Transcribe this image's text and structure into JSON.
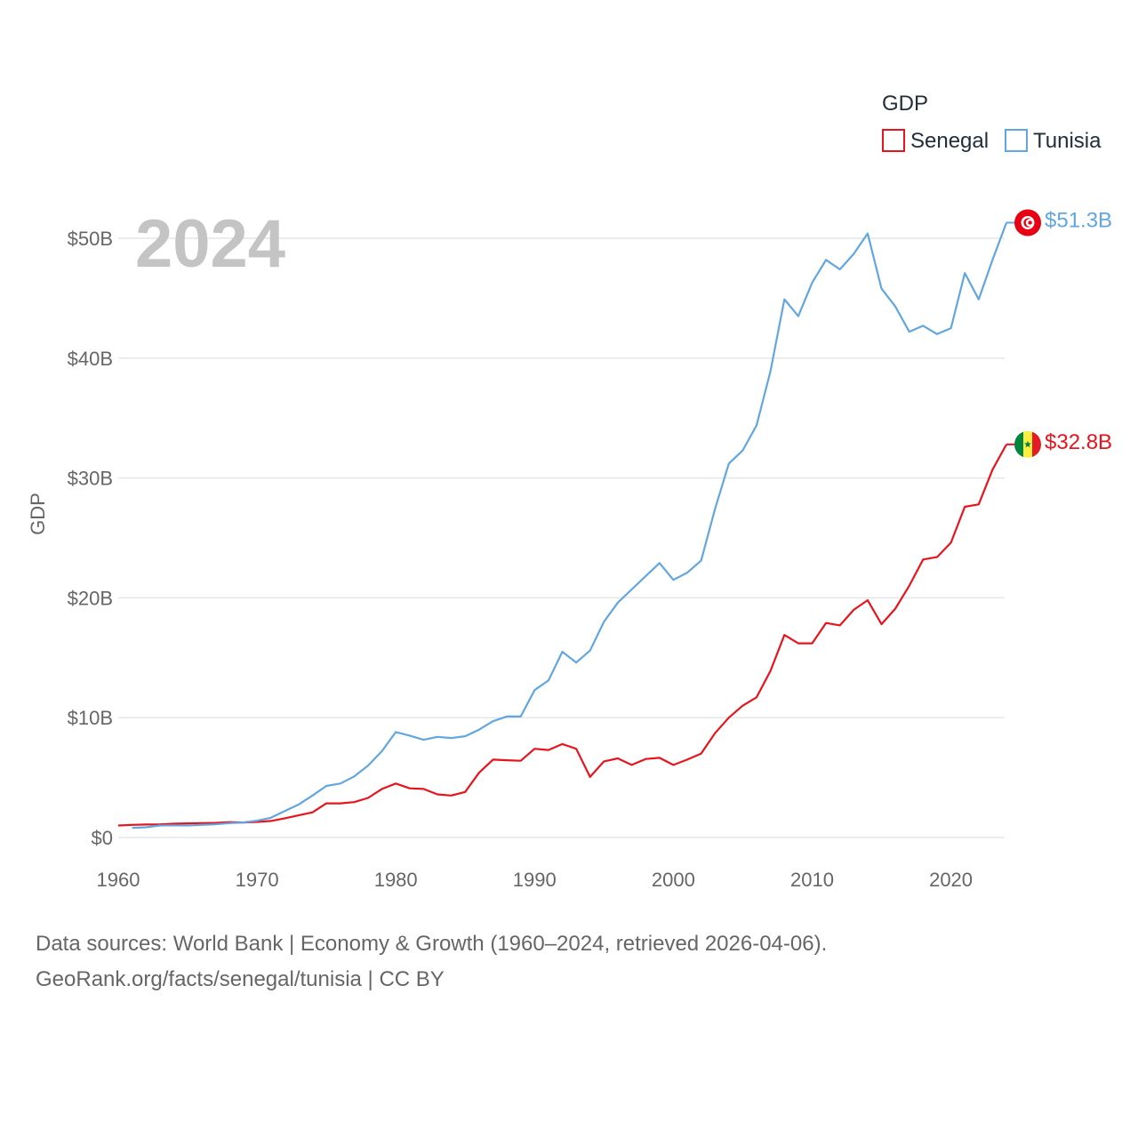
{
  "chart_data": {
    "type": "line",
    "title": "GDP",
    "year_label": "2024",
    "ylabel": "GDP",
    "xlabel": "",
    "xlim": [
      1960,
      2024
    ],
    "ylim": [
      0,
      53
    ],
    "x_ticks": [
      1960,
      1970,
      1980,
      1990,
      2000,
      2010,
      2020
    ],
    "x_tick_labels": [
      "1960",
      "1970",
      "1980",
      "1990",
      "2000",
      "2010",
      "2020"
    ],
    "y_ticks": [
      0,
      10,
      20,
      30,
      40,
      50
    ],
    "y_tick_labels": [
      "$0",
      "$10B",
      "$20B",
      "$30B",
      "$40B",
      "$50B"
    ],
    "legend": {
      "title": "GDP",
      "position": "top-right"
    },
    "series": [
      {
        "name": "Senegal",
        "color": "#e8141d",
        "end_label": "$32.8B",
        "flag_icon": "senegal-flag-icon",
        "x": [
          1960,
          1961,
          1962,
          1963,
          1964,
          1965,
          1966,
          1967,
          1968,
          1969,
          1970,
          1971,
          1972,
          1973,
          1974,
          1975,
          1976,
          1977,
          1978,
          1979,
          1980,
          1981,
          1982,
          1983,
          1984,
          1985,
          1986,
          1987,
          1988,
          1989,
          1990,
          1991,
          1992,
          1993,
          1994,
          1995,
          1996,
          1997,
          1998,
          1999,
          2000,
          2001,
          2002,
          2003,
          2004,
          2005,
          2006,
          2007,
          2008,
          2009,
          2010,
          2011,
          2012,
          2013,
          2014,
          2015,
          2016,
          2017,
          2018,
          2019,
          2020,
          2021,
          2022,
          2023,
          2024
        ],
        "values": [
          1.0,
          1.05,
          1.08,
          1.1,
          1.15,
          1.18,
          1.2,
          1.22,
          1.28,
          1.25,
          1.3,
          1.38,
          1.6,
          1.85,
          2.1,
          2.85,
          2.85,
          2.95,
          3.3,
          4.05,
          4.5,
          4.1,
          4.05,
          3.6,
          3.5,
          3.8,
          5.4,
          6.5,
          6.45,
          6.4,
          7.4,
          7.3,
          7.8,
          7.4,
          5.05,
          6.35,
          6.6,
          6.05,
          6.55,
          6.65,
          6.05,
          6.5,
          7.0,
          8.7,
          10.0,
          11.0,
          11.7,
          13.9,
          16.9,
          16.2,
          16.2,
          17.9,
          17.7,
          19.0,
          19.8,
          17.8,
          19.1,
          21.0,
          23.2,
          23.4,
          24.6,
          27.6,
          27.8,
          30.7,
          32.8
        ]
      },
      {
        "name": "Tunisia",
        "color": "#62a6e0",
        "end_label": "$51.3B",
        "flag_icon": "tunisia-flag-icon",
        "x": [
          1961,
          1962,
          1963,
          1964,
          1965,
          1966,
          1967,
          1968,
          1969,
          1970,
          1971,
          1972,
          1973,
          1974,
          1975,
          1976,
          1977,
          1978,
          1979,
          1980,
          1981,
          1982,
          1983,
          1984,
          1985,
          1986,
          1987,
          1988,
          1989,
          1990,
          1991,
          1992,
          1993,
          1994,
          1995,
          1996,
          1997,
          1998,
          1999,
          2000,
          2001,
          2002,
          2003,
          2004,
          2005,
          2006,
          2007,
          2008,
          2009,
          2010,
          2011,
          2012,
          2013,
          2014,
          2015,
          2016,
          2017,
          2018,
          2019,
          2020,
          2021,
          2022,
          2023,
          2024
        ],
        "values": [
          0.8,
          0.85,
          1.0,
          1.02,
          1.0,
          1.05,
          1.1,
          1.2,
          1.25,
          1.4,
          1.65,
          2.2,
          2.75,
          3.5,
          4.3,
          4.5,
          5.1,
          6.0,
          7.2,
          8.8,
          8.5,
          8.15,
          8.4,
          8.3,
          8.45,
          9.0,
          9.7,
          10.1,
          10.1,
          12.3,
          13.1,
          15.5,
          14.6,
          15.6,
          18.0,
          19.6,
          20.7,
          21.8,
          22.9,
          21.5,
          22.1,
          23.1,
          27.4,
          31.2,
          32.3,
          34.4,
          38.9,
          44.9,
          43.5,
          46.3,
          48.2,
          47.4,
          48.7,
          50.4,
          45.8,
          44.3,
          42.2,
          42.7,
          42.0,
          42.5,
          47.1,
          44.9,
          48.2,
          51.3
        ]
      }
    ]
  },
  "footer": {
    "line1": "Data sources: World Bank | Economy & Growth (1960–2024, retrieved 2026-04-06).",
    "line2": "GeoRank.org/facts/senegal/tunisia | CC BY"
  }
}
